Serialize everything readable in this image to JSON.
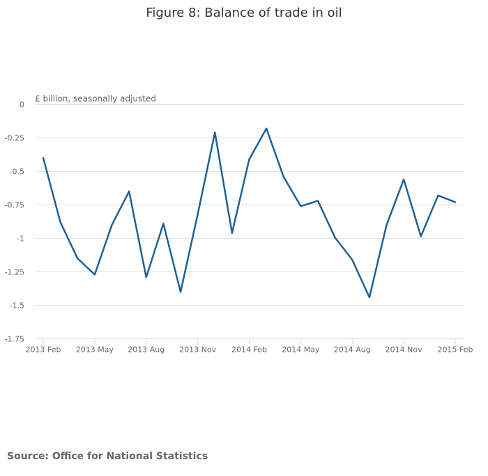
{
  "title": "Figure 8: Balance of trade in oil",
  "source": "Source: Office for National Statistics",
  "chart_data": {
    "type": "line",
    "title": "Figure 8: Balance of trade in oil",
    "ylabel": "£ billion, seasonally adjusted",
    "ylim": [
      -1.75,
      0
    ],
    "yticks": [
      0,
      -0.25,
      -0.5,
      -0.75,
      -1,
      -1.25,
      -1.5,
      -1.75
    ],
    "ytick_labels": [
      "0",
      "-0.25",
      "-0.5",
      "-0.75",
      "-1",
      "-1.25",
      "-1.5",
      "-1.75"
    ],
    "xtick_labels": [
      "2013 Feb",
      "2013 May",
      "2013 Aug",
      "2013 Nov",
      "2014 Feb",
      "2014 May",
      "2014 Aug",
      "2014 Nov",
      "2015 Feb"
    ],
    "grid": true,
    "color": "#206095",
    "x": [
      "2013 Feb",
      "2013 Mar",
      "2013 Apr",
      "2013 May",
      "2013 Jun",
      "2013 Jul",
      "2013 Aug",
      "2013 Sep",
      "2013 Oct",
      "2013 Nov",
      "2013 Dec",
      "2014 Jan",
      "2014 Feb",
      "2014 Mar",
      "2014 Apr",
      "2014 May",
      "2014 Jun",
      "2014 Jul",
      "2014 Aug",
      "2014 Sep",
      "2014 Oct",
      "2014 Nov",
      "2014 Dec",
      "2015 Jan",
      "2015 Feb"
    ],
    "values": [
      -0.4,
      -0.88,
      -1.15,
      -1.27,
      -0.9,
      -0.65,
      -1.29,
      -0.89,
      -1.4,
      -0.82,
      -0.21,
      -0.96,
      -0.41,
      -0.18,
      -0.54,
      -0.76,
      -0.72,
      -0.995,
      -1.16,
      -1.44,
      -0.9,
      -0.56,
      -0.985,
      -0.68,
      -0.73
    ]
  }
}
